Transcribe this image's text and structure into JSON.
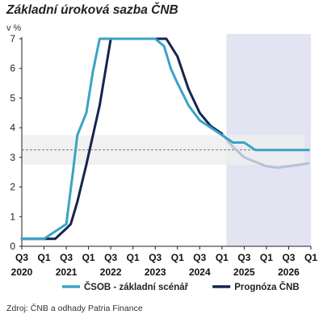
{
  "title": "Základní úroková sazba ČNB",
  "source": "Zdroj: ČNB a odhady Patria Finance",
  "colors": {
    "csob": "#3aa3c6",
    "cnb": "#16244f",
    "cnb_forecast": "#b4c2d8",
    "shade": "#e3e4f2",
    "band": "#efefef",
    "dashed": "#7a7a7a"
  },
  "chart_data": {
    "type": "line",
    "ylabel": "v %",
    "ylim": [
      0,
      7
    ],
    "yticks": [
      0,
      1,
      2,
      3,
      4,
      5,
      6,
      7
    ],
    "xlim": [
      2020.5,
      2027.0
    ],
    "xticks": [
      {
        "x": 2020.5,
        "q": "Q3",
        "year": "2020"
      },
      {
        "x": 2021.0,
        "q": "Q1",
        "year": ""
      },
      {
        "x": 2021.5,
        "q": "Q3",
        "year": "2021"
      },
      {
        "x": 2022.0,
        "q": "Q1",
        "year": ""
      },
      {
        "x": 2022.5,
        "q": "Q3",
        "year": "2022"
      },
      {
        "x": 2023.0,
        "q": "Q1",
        "year": ""
      },
      {
        "x": 2023.5,
        "q": "Q3",
        "year": "2023"
      },
      {
        "x": 2024.0,
        "q": "Q1",
        "year": ""
      },
      {
        "x": 2024.5,
        "q": "Q3",
        "year": "2024"
      },
      {
        "x": 2025.0,
        "q": "Q1",
        "year": ""
      },
      {
        "x": 2025.5,
        "q": "Q3",
        "year": "2025"
      },
      {
        "x": 2026.0,
        "q": "Q1",
        "year": ""
      },
      {
        "x": 2026.5,
        "q": "Q3",
        "year": "2026"
      },
      {
        "x": 2027.0,
        "q": "Q1",
        "year": ""
      }
    ],
    "forecast_region": [
      2025.1,
      2027.0
    ],
    "band": [
      2.75,
      3.75
    ],
    "reference_line": 3.25,
    "series": [
      {
        "name": "ČSOB - základní scénář",
        "key": "csob",
        "x": [
          2020.5,
          2021.0,
          2021.25,
          2021.5,
          2021.65,
          2021.75,
          2021.95,
          2022.1,
          2022.25,
          2022.5,
          2023.0,
          2023.5,
          2023.7,
          2023.85,
          2024.0,
          2024.25,
          2024.5,
          2024.75,
          2025.0,
          2025.25,
          2025.5,
          2025.75,
          2026.0,
          2026.25,
          2026.5,
          2026.75,
          2026.95
        ],
        "y": [
          0.25,
          0.25,
          0.5,
          0.75,
          2.5,
          3.75,
          4.5,
          5.9,
          7.0,
          7.0,
          7.0,
          7.0,
          6.75,
          6.0,
          5.5,
          4.75,
          4.25,
          4.0,
          3.75,
          3.5,
          3.5,
          3.25,
          3.25,
          3.25,
          3.25,
          3.25,
          3.25
        ]
      },
      {
        "name": "Prognóza ČNB",
        "key": "cnb",
        "x": [
          2020.5,
          2021.25,
          2021.5,
          2021.6,
          2021.75,
          2021.95,
          2022.25,
          2022.5,
          2023.0,
          2023.5,
          2023.75,
          2024.0,
          2024.25,
          2024.5,
          2024.75,
          2025.0
        ],
        "y": [
          0.25,
          0.25,
          0.6,
          0.75,
          1.5,
          2.75,
          4.75,
          7.0,
          7.0,
          7.0,
          7.0,
          6.4,
          5.3,
          4.5,
          4.05,
          3.8
        ]
      },
      {
        "name": "Prognóza ČNB",
        "key": "cnb_forecast",
        "x": [
          2025.0,
          2025.25,
          2025.5,
          2025.75,
          2026.0,
          2026.25,
          2026.5,
          2026.75,
          2026.95
        ],
        "y": [
          3.8,
          3.35,
          3.0,
          2.85,
          2.7,
          2.65,
          2.7,
          2.75,
          2.8
        ]
      }
    ],
    "legend": [
      {
        "label": "ČSOB - základní scénář",
        "key": "csob"
      },
      {
        "label": "Prognóza ČNB",
        "key": "cnb"
      }
    ]
  }
}
